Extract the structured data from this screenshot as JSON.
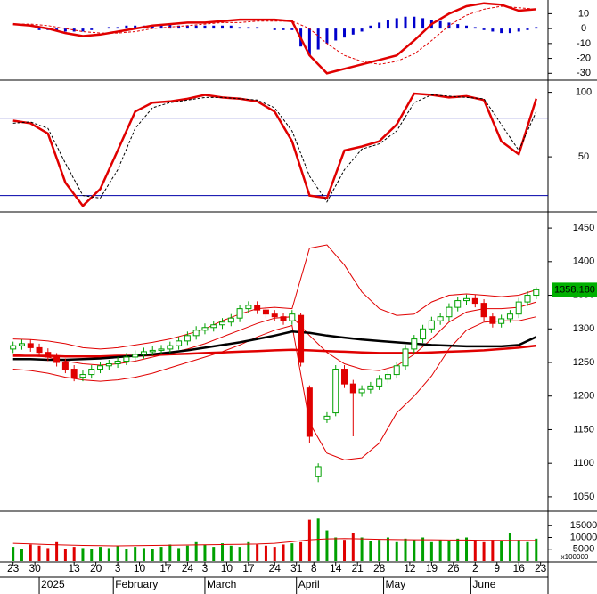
{
  "chart_data": {
    "type": "candlestick",
    "xlim": [
      -3,
      122.7
    ],
    "xticks": [
      {
        "value": 0,
        "label": "23"
      },
      {
        "value": 5,
        "label": "30"
      },
      {
        "value": 14,
        "label": "13"
      },
      {
        "value": 19,
        "label": "20"
      },
      {
        "value": 24,
        "label": "3"
      },
      {
        "value": 29,
        "label": "10"
      },
      {
        "value": 35,
        "label": "17"
      },
      {
        "value": 40,
        "label": "24"
      },
      {
        "value": 44,
        "label": "3"
      },
      {
        "value": 49,
        "label": "10"
      },
      {
        "value": 54,
        "label": "17"
      },
      {
        "value": 60,
        "label": "24"
      },
      {
        "value": 65,
        "label": "31"
      },
      {
        "value": 69,
        "label": "8"
      },
      {
        "value": 74,
        "label": "14"
      },
      {
        "value": 79,
        "label": "21"
      },
      {
        "value": 84,
        "label": "28"
      },
      {
        "value": 91,
        "label": "12"
      },
      {
        "value": 96,
        "label": "19"
      },
      {
        "value": 101,
        "label": "26"
      },
      {
        "value": 106,
        "label": "2"
      },
      {
        "value": 111,
        "label": "9"
      },
      {
        "value": 116,
        "label": "16"
      },
      {
        "value": 121,
        "label": "23"
      }
    ],
    "months": [
      {
        "value": 6,
        "label": "2025"
      },
      {
        "value": 23,
        "label": "February"
      },
      {
        "value": 44,
        "label": "March"
      },
      {
        "value": 65,
        "label": "April"
      },
      {
        "value": 85,
        "label": "May"
      },
      {
        "value": 105,
        "label": "June"
      }
    ],
    "line_x": [
      0,
      4,
      8,
      12,
      16,
      20,
      24,
      28,
      32,
      36,
      40,
      44,
      48,
      52,
      56,
      60,
      64,
      68,
      72,
      76,
      80,
      84,
      88,
      92,
      96,
      100,
      104,
      108,
      112,
      116,
      120
    ],
    "macd": {
      "ylim": [
        -34,
        18
      ],
      "yticks": [
        10,
        0,
        -10,
        -20,
        -30
      ],
      "hist_color": "#0000cc",
      "hist": [
        0,
        0,
        0,
        -1,
        -1,
        -2,
        -2,
        -2,
        -2,
        -1,
        0,
        1,
        1,
        2,
        2,
        2,
        2,
        3,
        3,
        2,
        2,
        2,
        2,
        2,
        2,
        2,
        1,
        1,
        1,
        0,
        -1,
        -1,
        -1,
        -12,
        -18,
        -14,
        -10,
        -8,
        -6,
        -4,
        -2,
        2,
        4,
        6,
        7,
        8,
        8,
        7,
        6,
        5,
        4,
        3,
        2,
        1,
        -1,
        -2,
        -3,
        -3,
        -2,
        -1,
        1
      ],
      "lines": [
        {
          "color": "#e00000",
          "width": 2.5,
          "dash": false,
          "values": [
            3,
            2,
            0,
            -3,
            -5,
            -4,
            -2,
            0,
            2,
            3,
            4,
            4,
            5,
            6,
            6,
            6,
            5,
            -18,
            -30,
            -27,
            -24,
            -21,
            -18,
            -8,
            3,
            10,
            15,
            17,
            16,
            12,
            13
          ]
        },
        {
          "color": "#e00000",
          "width": 1,
          "dash": true,
          "values": [
            3,
            3,
            2,
            0,
            -2,
            -3,
            -3,
            -2,
            0,
            1,
            2,
            3,
            4,
            4,
            5,
            5,
            5,
            0,
            -10,
            -18,
            -22,
            -24,
            -22,
            -17,
            -8,
            2,
            9,
            13,
            15,
            14,
            13
          ]
        }
      ]
    },
    "stoch": {
      "ylim": [
        8,
        108
      ],
      "yticks": [
        100,
        50
      ],
      "levels": [
        80,
        20
      ],
      "level_color": "#0000aa",
      "lines": [
        {
          "color": "#e00000",
          "width": 2.5,
          "dash": false,
          "values": [
            78,
            76,
            68,
            30,
            12,
            25,
            55,
            85,
            92,
            93,
            95,
            98,
            96,
            95,
            93,
            85,
            62,
            20,
            18,
            55,
            58,
            62,
            75,
            99,
            98,
            96,
            97,
            94,
            62,
            52,
            95
          ]
        },
        {
          "color": "#000000",
          "width": 1,
          "dash": true,
          "values": [
            76,
            77,
            72,
            45,
            20,
            18,
            40,
            72,
            88,
            92,
            94,
            96,
            96,
            95,
            94,
            88,
            70,
            35,
            15,
            40,
            56,
            60,
            70,
            92,
            98,
            97,
            96,
            95,
            75,
            55,
            85
          ]
        }
      ]
    },
    "price": {
      "ylim": [
        1030,
        1470
      ],
      "yticks": [
        1450,
        1400,
        1350,
        1300,
        1250,
        1200,
        1150,
        1100,
        1050
      ],
      "up_color": "#00a000",
      "down_color": "#e00000",
      "candles": {
        "x": [
          0,
          2,
          4,
          6,
          8,
          10,
          12,
          14,
          16,
          18,
          20,
          22,
          24,
          26,
          28,
          30,
          32,
          34,
          36,
          38,
          40,
          42,
          44,
          46,
          48,
          50,
          52,
          54,
          56,
          58,
          60,
          62,
          64,
          66,
          68,
          70,
          72,
          74,
          76,
          78,
          80,
          82,
          84,
          86,
          88,
          90,
          92,
          94,
          96,
          98,
          100,
          102,
          104,
          106,
          108,
          110,
          112,
          114,
          116,
          118,
          120
        ],
        "open": [
          1270,
          1275,
          1278,
          1272,
          1265,
          1258,
          1250,
          1240,
          1228,
          1232,
          1240,
          1245,
          1248,
          1252,
          1258,
          1262,
          1266,
          1268,
          1270,
          1275,
          1282,
          1290,
          1298,
          1302,
          1306,
          1310,
          1316,
          1330,
          1335,
          1328,
          1322,
          1318,
          1312,
          1320,
          1212,
          1080,
          1165,
          1175,
          1240,
          1218,
          1205,
          1210,
          1215,
          1225,
          1232,
          1245,
          1270,
          1285,
          1300,
          1312,
          1318,
          1332,
          1342,
          1345,
          1338,
          1318,
          1308,
          1315,
          1322,
          1340,
          1350
        ],
        "high": [
          1281,
          1284,
          1284,
          1278,
          1271,
          1264,
          1256,
          1246,
          1238,
          1246,
          1251,
          1254,
          1258,
          1264,
          1268,
          1272,
          1274,
          1276,
          1281,
          1288,
          1296,
          1304,
          1308,
          1312,
          1316,
          1322,
          1336,
          1341,
          1341,
          1334,
          1328,
          1324,
          1328,
          1324,
          1216,
          1100,
          1176,
          1246,
          1246,
          1224,
          1216,
          1221,
          1231,
          1238,
          1251,
          1276,
          1291,
          1306,
          1318,
          1324,
          1338,
          1348,
          1351,
          1351,
          1344,
          1324,
          1321,
          1328,
          1346,
          1356,
          1362
        ],
        "low": [
          1264,
          1269,
          1266,
          1259,
          1252,
          1244,
          1234,
          1222,
          1222,
          1226,
          1234,
          1239,
          1242,
          1246,
          1252,
          1256,
          1260,
          1262,
          1264,
          1269,
          1276,
          1284,
          1292,
          1296,
          1300,
          1304,
          1310,
          1324,
          1322,
          1316,
          1312,
          1306,
          1306,
          1244,
          1130,
          1072,
          1160,
          1170,
          1212,
          1140,
          1199,
          1204,
          1209,
          1219,
          1226,
          1239,
          1264,
          1279,
          1294,
          1306,
          1312,
          1326,
          1336,
          1332,
          1312,
          1302,
          1302,
          1309,
          1316,
          1334,
          1344
        ],
        "close": [
          1275,
          1278,
          1272,
          1265,
          1258,
          1250,
          1240,
          1228,
          1232,
          1240,
          1245,
          1248,
          1252,
          1258,
          1262,
          1266,
          1268,
          1270,
          1275,
          1282,
          1290,
          1298,
          1302,
          1306,
          1310,
          1316,
          1330,
          1335,
          1328,
          1322,
          1318,
          1312,
          1322,
          1250,
          1140,
          1095,
          1170,
          1240,
          1218,
          1205,
          1210,
          1215,
          1225,
          1232,
          1245,
          1270,
          1285,
          1300,
          1312,
          1318,
          1332,
          1342,
          1345,
          1338,
          1318,
          1308,
          1315,
          1322,
          1340,
          1350,
          1358.18
        ]
      },
      "lines": [
        {
          "color": "#e00000",
          "width": 1,
          "values": [
            1285,
            1284,
            1282,
            1278,
            1272,
            1270,
            1272,
            1276,
            1280,
            1285,
            1292,
            1300,
            1312,
            1322,
            1330,
            1332,
            1330,
            1420,
            1425,
            1395,
            1355,
            1330,
            1320,
            1322,
            1340,
            1350,
            1352,
            1350,
            1348,
            1350,
            1358
          ]
        },
        {
          "color": "#e00000",
          "width": 1,
          "values": [
            1262,
            1260,
            1258,
            1252,
            1248,
            1246,
            1248,
            1252,
            1258,
            1264,
            1270,
            1278,
            1288,
            1298,
            1308,
            1316,
            1318,
            1290,
            1265,
            1248,
            1240,
            1238,
            1245,
            1262,
            1285,
            1310,
            1325,
            1330,
            1330,
            1332,
            1340
          ]
        },
        {
          "color": "#e00000",
          "width": 1,
          "values": [
            1240,
            1238,
            1234,
            1228,
            1224,
            1222,
            1224,
            1228,
            1234,
            1242,
            1250,
            1258,
            1266,
            1276,
            1288,
            1298,
            1305,
            1160,
            1115,
            1105,
            1108,
            1130,
            1175,
            1200,
            1230,
            1270,
            1298,
            1310,
            1312,
            1312,
            1318
          ]
        },
        {
          "color": "#e00000",
          "width": 2.5,
          "values": [
            1260,
            1260,
            1260,
            1259,
            1259,
            1259,
            1260,
            1260,
            1261,
            1262,
            1263,
            1264,
            1265,
            1266,
            1267,
            1268,
            1269,
            1268,
            1267,
            1266,
            1265,
            1264,
            1264,
            1264,
            1265,
            1266,
            1267,
            1268,
            1270,
            1272,
            1275
          ]
        },
        {
          "color": "#000000",
          "width": 2.5,
          "values": [
            1255,
            1255,
            1254,
            1254,
            1255,
            1256,
            1258,
            1260,
            1262,
            1265,
            1268,
            1272,
            1276,
            1280,
            1285,
            1290,
            1296,
            1294,
            1290,
            1287,
            1284,
            1282,
            1280,
            1278,
            1276,
            1275,
            1274,
            1274,
            1274,
            1276,
            1288
          ]
        }
      ],
      "last": {
        "value": 1358.18,
        "label": "1358.180",
        "color": "#00b000"
      }
    },
    "volume": {
      "ylim": [
        0,
        20000
      ],
      "yticks": [
        15000,
        10000,
        5000
      ],
      "unit_label": "x100000",
      "values": [
        6000,
        5000,
        7000,
        6500,
        5500,
        8000,
        5000,
        6000,
        5500,
        5000,
        6000,
        5500,
        6500,
        5000,
        6000,
        5500,
        5000,
        6000,
        7000,
        5500,
        6500,
        8000,
        7000,
        6000,
        7500,
        6500,
        6000,
        8000,
        7000,
        6500,
        6000,
        7000,
        7500,
        8000,
        17500,
        18000,
        13000,
        10000,
        9000,
        12000,
        10000,
        8500,
        9000,
        10000,
        8000,
        9500,
        9000,
        10000,
        8000,
        9000,
        8500,
        9500,
        10000,
        9000,
        8000,
        9000,
        8500,
        12000,
        9000,
        8000,
        9500
      ],
      "ma": {
        "color": "#e00000",
        "values": [
          7500,
          7300,
          7000,
          6800,
          6600,
          6500,
          6400,
          6500,
          6600,
          6700,
          6800,
          6900,
          7000,
          7100,
          7200,
          7500,
          8200,
          9000,
          9400,
          9500,
          9400,
          9200,
          9100,
          9000,
          9000,
          8900,
          8900,
          8800,
          8800,
          8700,
          8700
        ]
      }
    }
  }
}
